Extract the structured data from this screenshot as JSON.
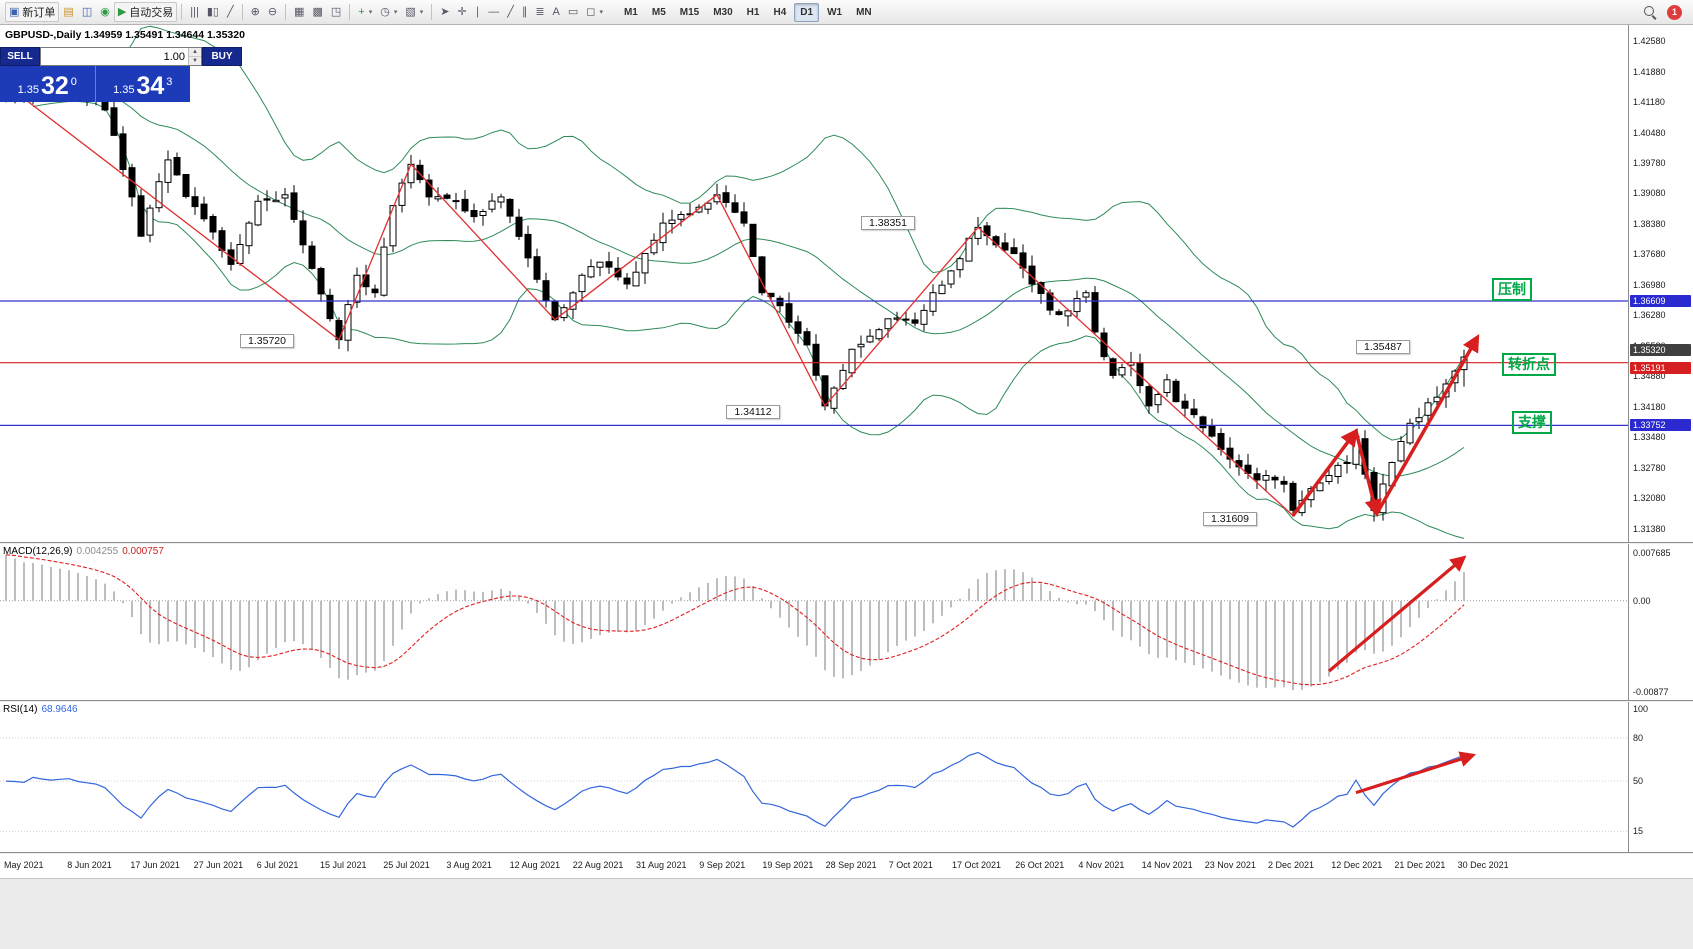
{
  "toolbar": {
    "groups": [
      {
        "name": "trade",
        "items": [
          {
            "name": "new-order",
            "glyph": "▣",
            "glyph_color": "#3a62b0",
            "label": "新订单"
          },
          {
            "name": "market-watch",
            "glyph": "▤",
            "glyph_color": "#c8912a"
          },
          {
            "name": "data-window",
            "glyph": "◫",
            "glyph_color": "#3a62b0"
          },
          {
            "name": "navigator",
            "glyph": "◉",
            "glyph_color": "#2f9a42"
          },
          {
            "name": "autotrading",
            "glyph": "▶",
            "glyph_color": "#2f9a42",
            "label": "自动交易"
          }
        ]
      },
      {
        "name": "chart-type",
        "items": [
          {
            "name": "bar-chart",
            "glyph": "|||"
          },
          {
            "name": "candlestick-chart",
            "glyph": "▮▯"
          },
          {
            "name": "line-chart",
            "glyph": "╱"
          }
        ]
      },
      {
        "name": "zoom",
        "items": [
          {
            "name": "zoom-in",
            "glyph": "⊕"
          },
          {
            "name": "zoom-out",
            "glyph": "⊖"
          }
        ]
      },
      {
        "name": "windows",
        "items": [
          {
            "name": "tile-windows",
            "glyph": "▦"
          },
          {
            "name": "cascade-windows",
            "glyph": "▩"
          },
          {
            "name": "track-chart",
            "glyph": "◳"
          }
        ]
      },
      {
        "name": "insert",
        "items": [
          {
            "name": "indicators",
            "glyph": "+",
            "glyph_color": "#2f9a42",
            "caret": true
          },
          {
            "name": "periods",
            "glyph": "◷",
            "caret": true
          },
          {
            "name": "templates",
            "glyph": "▧",
            "caret": true
          }
        ]
      },
      {
        "name": "draw",
        "items": [
          {
            "name": "cursor",
            "glyph": "➤"
          },
          {
            "name": "crosshair",
            "glyph": "✛"
          },
          {
            "name": "vertical-line",
            "glyph": "∣"
          },
          {
            "name": "horizontal-line",
            "glyph": "―"
          },
          {
            "name": "trendline",
            "glyph": "╱"
          },
          {
            "name": "equidistant-channel",
            "glyph": "∥"
          },
          {
            "name": "fibonacci",
            "glyph": "≣"
          },
          {
            "name": "text",
            "glyph": "A"
          },
          {
            "name": "text-label",
            "glyph": "▭"
          },
          {
            "name": "shapes",
            "glyph": "◻",
            "caret": true
          }
        ]
      }
    ],
    "timeframes": {
      "items": [
        "M1",
        "M5",
        "M15",
        "M30",
        "H1",
        "H4",
        "D1",
        "W1",
        "MN"
      ],
      "active": "D1"
    },
    "notification_count": "1"
  },
  "chart": {
    "info_line": "GBPUSD-,Daily 1.34959 1.35491 1.34644 1.35320",
    "trade_panel": {
      "sell_label": "SELL",
      "buy_label": "BUY",
      "volume": "1.00",
      "bid": {
        "prefix": "1.35",
        "big": "32",
        "sup": "0"
      },
      "ask": {
        "prefix": "1.35",
        "big": "34",
        "sup": "3"
      }
    },
    "annotations": [
      {
        "name": "resistance-label",
        "text": "压制",
        "price": 1.36609,
        "x": 1492,
        "dy": -23
      },
      {
        "name": "pivot-label",
        "text": "转折点",
        "price": 1.35191,
        "x": 1502,
        "dy": -10
      },
      {
        "name": "support-label",
        "text": "支撑",
        "price": 1.33752,
        "x": 1512,
        "dy": -14
      }
    ]
  },
  "chart_data": {
    "type": "candlestick",
    "symbol": "GBPUSD-",
    "timeframe": "Daily",
    "ohlc": {
      "open": 1.34959,
      "high": 1.35491,
      "low": 1.34644,
      "close": 1.3532
    },
    "indicators": [
      "Bollinger Bands",
      "MACD(12,26,9)",
      "RSI(14)"
    ],
    "y_ticks": [
      "1.42580",
      "1.41880",
      "1.41180",
      "1.40480",
      "1.39780",
      "1.39080",
      "1.38380",
      "1.37680",
      "1.36980",
      "1.36280",
      "1.35580",
      "1.34880",
      "1.34180",
      "1.33480",
      "1.32780",
      "1.32080",
      "1.31380"
    ],
    "price_range": [
      1.3105,
      1.4295
    ],
    "x_dates": [
      "May 2021",
      "8 Jun 2021",
      "17 Jun 2021",
      "27 Jun 2021",
      "6 Jul 2021",
      "15 Jul 2021",
      "25 Jul 2021",
      "3 Aug 2021",
      "12 Aug 2021",
      "22 Aug 2021",
      "31 Aug 2021",
      "9 Sep 2021",
      "19 Sep 2021",
      "28 Sep 2021",
      "7 Oct 2021",
      "17 Oct 2021",
      "26 Oct 2021",
      "4 Nov 2021",
      "14 Nov 2021",
      "23 Nov 2021",
      "2 Dec 2021",
      "12 Dec 2021",
      "21 Dec 2021",
      "30 Dec 2021"
    ],
    "candle_count": 163,
    "price_anchors": [
      [
        0,
        1.4135
      ],
      [
        7,
        1.4155
      ],
      [
        11,
        1.41
      ],
      [
        14,
        1.39
      ],
      [
        15,
        1.381
      ],
      [
        18,
        1.3985
      ],
      [
        22,
        1.385
      ],
      [
        25,
        1.3745
      ],
      [
        28,
        1.389
      ],
      [
        31,
        1.3905
      ],
      [
        33,
        1.379
      ],
      [
        37,
        1.3572
      ],
      [
        39,
        1.372
      ],
      [
        41,
        1.368
      ],
      [
        43,
        1.388
      ],
      [
        45,
        1.3975
      ],
      [
        47,
        1.39
      ],
      [
        50,
        1.389
      ],
      [
        52,
        1.3855
      ],
      [
        55,
        1.39
      ],
      [
        58,
        1.376
      ],
      [
        61,
        1.3618
      ],
      [
        64,
        1.372
      ],
      [
        66,
        1.375
      ],
      [
        69,
        1.37
      ],
      [
        71,
        1.377
      ],
      [
        73,
        1.384
      ],
      [
        76,
        1.386
      ],
      [
        79,
        1.3905
      ],
      [
        82,
        1.384
      ],
      [
        84,
        1.368
      ],
      [
        86,
        1.365
      ],
      [
        89,
        1.356
      ],
      [
        91,
        1.342
      ],
      [
        94,
        1.355
      ],
      [
        96,
        1.358
      ],
      [
        98,
        1.362
      ],
      [
        101,
        1.361
      ],
      [
        103,
        1.368
      ],
      [
        105,
        1.373
      ],
      [
        108,
        1.383
      ],
      [
        110,
        1.379
      ],
      [
        112,
        1.377
      ],
      [
        114,
        1.37
      ],
      [
        116,
        1.364
      ],
      [
        117,
        1.363
      ],
      [
        120,
        1.368
      ],
      [
        121,
        1.359
      ],
      [
        123,
        1.349
      ],
      [
        125,
        1.352
      ],
      [
        127,
        1.342
      ],
      [
        129,
        1.348
      ],
      [
        130,
        1.343
      ],
      [
        132,
        1.34
      ],
      [
        133,
        1.337
      ],
      [
        135,
        1.332
      ],
      [
        137,
        1.328
      ],
      [
        139,
        1.325
      ],
      [
        140,
        1.326
      ],
      [
        142,
        1.324
      ],
      [
        143,
        1.318
      ],
      [
        145,
        1.323
      ],
      [
        147,
        1.326
      ],
      [
        149,
        1.329
      ],
      [
        150,
        1.335
      ],
      [
        152,
        1.318
      ],
      [
        154,
        1.329
      ],
      [
        156,
        1.338
      ],
      [
        159,
        1.344
      ],
      [
        161,
        1.35
      ],
      [
        162,
        1.3532
      ]
    ],
    "bollinger": {
      "period": 20,
      "deviation": 2
    },
    "trendline_points": [
      [
        1,
        1.4142
      ],
      [
        37,
        1.3572
      ],
      [
        45,
        1.3975
      ],
      [
        61,
        1.3618
      ],
      [
        79,
        1.3905
      ],
      [
        91,
        1.342
      ],
      [
        108,
        1.383
      ],
      [
        143,
        1.3168
      ]
    ],
    "arrows": [
      {
        "points": [
          [
            143,
            1.3168
          ],
          [
            150,
            1.3362
          ]
        ]
      },
      {
        "points": [
          [
            150,
            1.3362
          ],
          [
            152.3,
            1.3172
          ]
        ]
      },
      {
        "points": [
          [
            152.3,
            1.3172
          ],
          [
            163.5,
            1.3578
          ]
        ]
      }
    ],
    "hlines": [
      {
        "price": 1.36609,
        "label": "1.36609",
        "color": "#3333cc"
      },
      {
        "price": 1.35191,
        "label": "1.35191",
        "color": "#d42020"
      },
      {
        "price": 1.33752,
        "label": "1.33752",
        "color": "#3333cc"
      }
    ],
    "axis_badges": [
      {
        "text": "1.36609",
        "price": 1.36609,
        "color": "#2a2ad0",
        "dy": -6
      },
      {
        "text": "1.35320",
        "price": 1.3532,
        "color": "#404040",
        "dy": -13
      },
      {
        "text": "1.35191",
        "price": 1.35191,
        "color": "#d42020",
        "dy": -1
      },
      {
        "text": "1.33752",
        "price": 1.33752,
        "color": "#2a2ad0",
        "dy": -6
      }
    ],
    "swing_labels": [
      {
        "text": "1.35720",
        "index": 29,
        "price": 1.3566
      },
      {
        "text": "1.34112",
        "index": 83,
        "price": 1.3404
      },
      {
        "text": "1.38351",
        "index": 98,
        "price": 1.3838
      },
      {
        "text": "1.31609",
        "index": 136,
        "price": 1.3158
      },
      {
        "text": "1.35487",
        "index": 153,
        "price": 1.3552
      }
    ],
    "macd": {
      "label": "MACD(12,26,9)",
      "value_main": "0.004255",
      "value_signal": "0.000757",
      "fast": 12,
      "slow": 26,
      "signal": 9,
      "axis": [
        "0.007685",
        "0.00",
        "-0.00877"
      ],
      "arrow": {
        "points": [
          [
            147,
            -0.0078
          ],
          [
            162,
            0.0048
          ]
        ]
      }
    },
    "rsi": {
      "label": "RSI(14)",
      "value": "68.9646",
      "period": 14,
      "axis": [
        {
          "v": 100,
          "text": "100"
        },
        {
          "v": 80,
          "text": "80"
        },
        {
          "v": 50,
          "text": "50"
        },
        {
          "v": 15,
          "text": "15"
        }
      ],
      "levels": [
        80,
        50,
        15
      ],
      "range": [
        0,
        105
      ],
      "arrow": {
        "points": [
          [
            150,
            42
          ],
          [
            163,
            68
          ]
        ]
      }
    },
    "colors": {
      "bull": "#ffffff",
      "bear": "#000000",
      "wick": "#000000",
      "bollinger": "#2e8b57",
      "trend": "#e03030",
      "arrow": "#d81f1f",
      "macd_hist": "#bdbdbd",
      "macd_signal": "#e02020",
      "macd_zero": "#999999",
      "rsi_line": "#3366dd",
      "level": "#cfcfcf"
    }
  }
}
